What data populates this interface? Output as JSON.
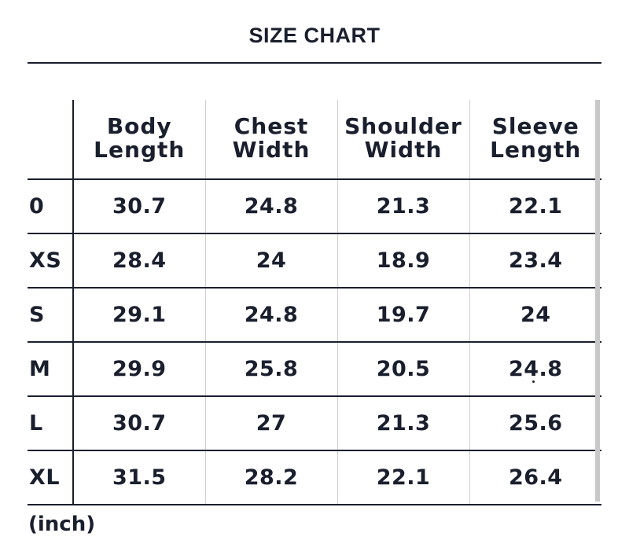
{
  "title": "SIZE CHART",
  "unit_note": "(inch)",
  "table": {
    "headers": [
      {
        "line1": "Body",
        "line2": "Length"
      },
      {
        "line1": "Chest",
        "line2": "Width"
      },
      {
        "line1": "Shoulder",
        "line2": "Width"
      },
      {
        "line1": "Sleeve",
        "line2": "Length"
      }
    ],
    "rows": [
      {
        "size": "0",
        "values": [
          "30.7",
          "24.8",
          "21.3",
          "22.1"
        ]
      },
      {
        "size": "XS",
        "values": [
          "28.4",
          "24",
          "18.9",
          "23.4"
        ]
      },
      {
        "size": "S",
        "values": [
          "29.1",
          "24.8",
          "19.7",
          "24"
        ]
      },
      {
        "size": "M",
        "values": [
          "29.9",
          "25.8",
          "20.5",
          "24.8"
        ]
      },
      {
        "size": "L",
        "values": [
          "30.7",
          "27",
          "21.3",
          "25.6"
        ]
      },
      {
        "size": "XL",
        "values": [
          "31.5",
          "28.2",
          "22.1",
          "26.4"
        ]
      }
    ]
  },
  "colors": {
    "text": "#1a1f2e",
    "grid_minor": "#cfcfcf",
    "edge_shade": "#c8c8c8"
  }
}
